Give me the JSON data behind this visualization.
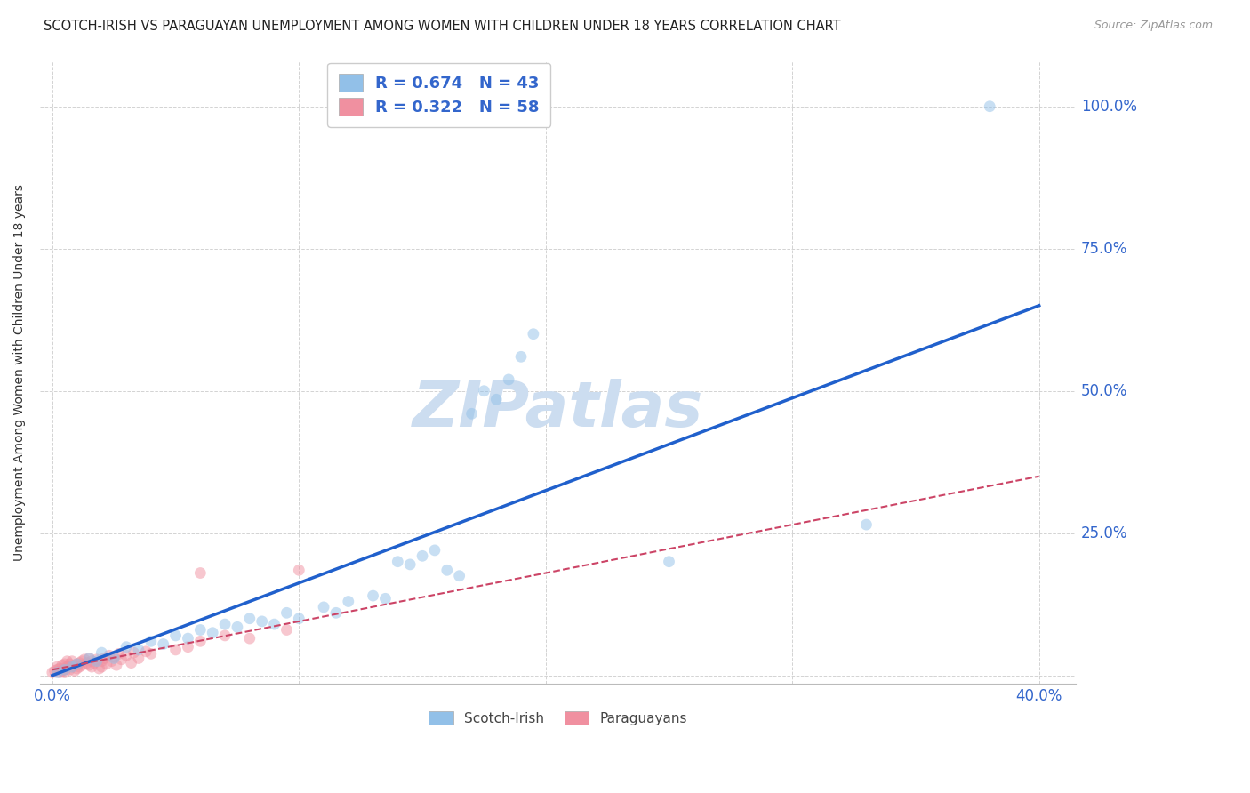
{
  "title": "SCOTCH-IRISH VS PARAGUAYAN UNEMPLOYMENT AMONG WOMEN WITH CHILDREN UNDER 18 YEARS CORRELATION CHART",
  "source": "Source: ZipAtlas.com",
  "ylabel_label": "Unemployment Among Women with Children Under 18 years",
  "xlim": [
    -0.005,
    0.415
  ],
  "ylim": [
    -0.015,
    1.08
  ],
  "x_ticks": [
    0.0,
    0.1,
    0.2,
    0.3,
    0.4
  ],
  "x_tick_labels": [
    "0.0%",
    "",
    "",
    "",
    "40.0%"
  ],
  "y_ticks": [
    0.0,
    0.25,
    0.5,
    0.75,
    1.0
  ],
  "y_ticks_right": [
    0.25,
    0.5,
    0.75,
    1.0
  ],
  "y_tick_labels_right": [
    "25.0%",
    "50.0%",
    "75.0%",
    "100.0%"
  ],
  "scotch_irish_color": "#92c0e8",
  "paraguayan_color": "#f090a0",
  "line_blue": "#2060cc",
  "line_pink": "#cc4466",
  "tick_label_color": "#3366cc",
  "grid_color": "#cccccc",
  "background_color": "#ffffff",
  "scatter_alpha": 0.5,
  "scatter_size": 85,
  "watermark_text": "ZIPatlas",
  "watermark_color": "#ccddf0",
  "watermark_fontsize": 52,
  "title_fontsize": 10.5,
  "source_fontsize": 9,
  "axis_label_fontsize": 10,
  "legend1_label1": "R = 0.674   N = 43",
  "legend1_label2": "R = 0.322   N = 58",
  "legend2_label1": "Scotch-Irish",
  "legend2_label2": "Paraguayans",
  "scotch_irish_line_x": [
    0.0,
    0.4
  ],
  "scotch_irish_line_y": [
    0.0,
    0.65
  ],
  "paraguayan_line_x": [
    0.0,
    0.4
  ],
  "paraguayan_line_y": [
    0.01,
    0.35
  ],
  "scotch_irish_scatter": [
    [
      0.002,
      0.005
    ],
    [
      0.005,
      0.01
    ],
    [
      0.008,
      0.015
    ],
    [
      0.01,
      0.02
    ],
    [
      0.015,
      0.03
    ],
    [
      0.018,
      0.025
    ],
    [
      0.02,
      0.04
    ],
    [
      0.025,
      0.03
    ],
    [
      0.03,
      0.05
    ],
    [
      0.035,
      0.045
    ],
    [
      0.04,
      0.06
    ],
    [
      0.045,
      0.055
    ],
    [
      0.05,
      0.07
    ],
    [
      0.055,
      0.065
    ],
    [
      0.06,
      0.08
    ],
    [
      0.065,
      0.075
    ],
    [
      0.07,
      0.09
    ],
    [
      0.075,
      0.085
    ],
    [
      0.08,
      0.1
    ],
    [
      0.085,
      0.095
    ],
    [
      0.09,
      0.09
    ],
    [
      0.095,
      0.11
    ],
    [
      0.1,
      0.1
    ],
    [
      0.11,
      0.12
    ],
    [
      0.115,
      0.11
    ],
    [
      0.12,
      0.13
    ],
    [
      0.13,
      0.14
    ],
    [
      0.135,
      0.135
    ],
    [
      0.14,
      0.2
    ],
    [
      0.145,
      0.195
    ],
    [
      0.15,
      0.21
    ],
    [
      0.155,
      0.22
    ],
    [
      0.16,
      0.185
    ],
    [
      0.165,
      0.175
    ],
    [
      0.17,
      0.46
    ],
    [
      0.175,
      0.5
    ],
    [
      0.18,
      0.485
    ],
    [
      0.185,
      0.52
    ],
    [
      0.19,
      0.56
    ],
    [
      0.195,
      0.6
    ],
    [
      0.25,
      0.2
    ],
    [
      0.33,
      0.265
    ],
    [
      0.38,
      1.0
    ]
  ],
  "paraguayan_scatter": [
    [
      0.0,
      0.005
    ],
    [
      0.001,
      0.008
    ],
    [
      0.002,
      0.01
    ],
    [
      0.002,
      0.015
    ],
    [
      0.003,
      0.005
    ],
    [
      0.003,
      0.012
    ],
    [
      0.004,
      0.008
    ],
    [
      0.004,
      0.018
    ],
    [
      0.005,
      0.01
    ],
    [
      0.005,
      0.02
    ],
    [
      0.005,
      0.005
    ],
    [
      0.006,
      0.015
    ],
    [
      0.006,
      0.025
    ],
    [
      0.007,
      0.01
    ],
    [
      0.007,
      0.02
    ],
    [
      0.008,
      0.015
    ],
    [
      0.008,
      0.025
    ],
    [
      0.009,
      0.018
    ],
    [
      0.009,
      0.008
    ],
    [
      0.01,
      0.02
    ],
    [
      0.01,
      0.012
    ],
    [
      0.011,
      0.022
    ],
    [
      0.011,
      0.015
    ],
    [
      0.012,
      0.025
    ],
    [
      0.012,
      0.018
    ],
    [
      0.013,
      0.028
    ],
    [
      0.014,
      0.022
    ],
    [
      0.015,
      0.03
    ],
    [
      0.015,
      0.018
    ],
    [
      0.016,
      0.025
    ],
    [
      0.016,
      0.015
    ],
    [
      0.017,
      0.022
    ],
    [
      0.018,
      0.028
    ],
    [
      0.019,
      0.012
    ],
    [
      0.02,
      0.025
    ],
    [
      0.02,
      0.015
    ],
    [
      0.021,
      0.03
    ],
    [
      0.022,
      0.02
    ],
    [
      0.023,
      0.035
    ],
    [
      0.024,
      0.025
    ],
    [
      0.025,
      0.032
    ],
    [
      0.026,
      0.018
    ],
    [
      0.027,
      0.038
    ],
    [
      0.028,
      0.028
    ],
    [
      0.03,
      0.035
    ],
    [
      0.032,
      0.022
    ],
    [
      0.033,
      0.04
    ],
    [
      0.035,
      0.03
    ],
    [
      0.038,
      0.042
    ],
    [
      0.04,
      0.038
    ],
    [
      0.05,
      0.045
    ],
    [
      0.055,
      0.05
    ],
    [
      0.06,
      0.06
    ],
    [
      0.07,
      0.07
    ],
    [
      0.08,
      0.065
    ],
    [
      0.06,
      0.18
    ],
    [
      0.095,
      0.08
    ],
    [
      0.1,
      0.185
    ]
  ]
}
